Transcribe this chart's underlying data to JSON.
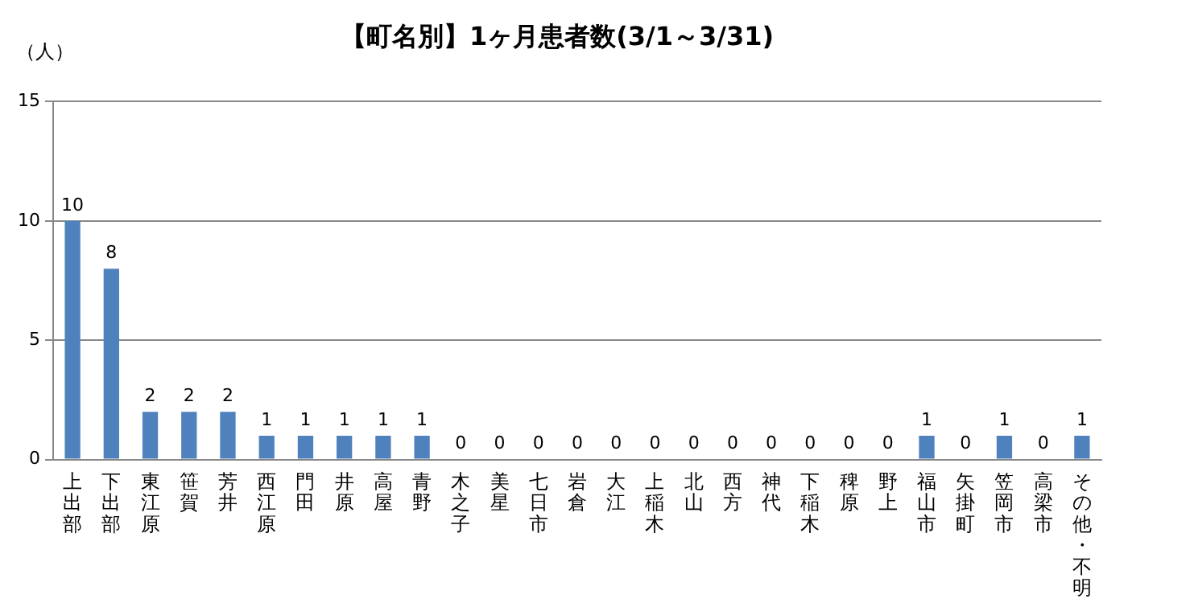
{
  "chart_data": {
    "type": "bar",
    "title": "【町名別】1ヶ月患者数(3/1～3/31)",
    "ylabel": "（人）",
    "categories": [
      "上出部",
      "下出部",
      "東江原",
      "笹賀",
      "芳井",
      "西江原",
      "門田",
      "井原",
      "高屋",
      "青野",
      "木之子",
      "美星",
      "七日市",
      "岩倉",
      "大江",
      "上稲木",
      "北山",
      "西方",
      "神代",
      "下稲木",
      "稗原",
      "野上",
      "福山市",
      "矢掛町",
      "笠岡市",
      "高梁市",
      "その他・不明"
    ],
    "values": [
      10,
      8,
      2,
      2,
      2,
      1,
      1,
      1,
      1,
      1,
      0,
      0,
      0,
      0,
      0,
      0,
      0,
      0,
      0,
      0,
      0,
      0,
      1,
      0,
      1,
      0,
      1
    ],
    "color": "#4f81bd",
    "ylim": [
      0,
      15
    ],
    "yticks": [
      0,
      5,
      10,
      15
    ],
    "grid": "y",
    "data_labels": true,
    "legend": false
  }
}
